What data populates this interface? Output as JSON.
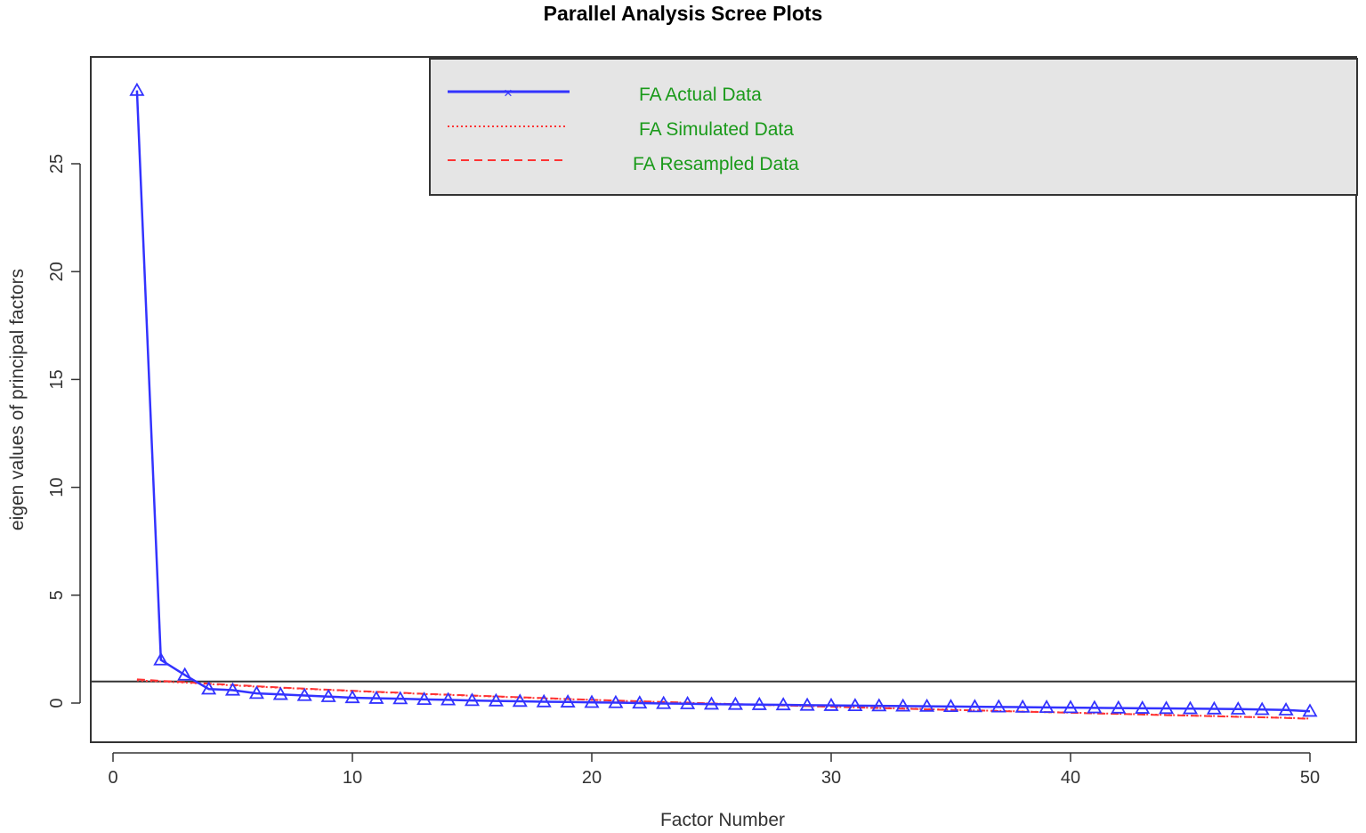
{
  "chart_data": {
    "type": "line",
    "title": "Parallel Analysis Scree Plots",
    "xlabel": "Factor Number",
    "ylabel": "eigen values of principal factors",
    "xlim": [
      0,
      50
    ],
    "ylim": [
      -1.8,
      29.3
    ],
    "x_ticks": [
      0,
      10,
      20,
      30,
      40,
      50
    ],
    "y_ticks": [
      0,
      5,
      10,
      15,
      20,
      25
    ],
    "reference_line": 1,
    "legend_position": "top-right",
    "colors": {
      "actual": "#3333ff",
      "simulated": "#ff3333",
      "resampled": "#ff3333",
      "legend_text": "#1a9a1a",
      "legend_bg": "#e5e5e5"
    },
    "x": [
      1,
      2,
      3,
      4,
      5,
      6,
      7,
      8,
      9,
      10,
      11,
      12,
      13,
      14,
      15,
      16,
      17,
      18,
      19,
      20,
      21,
      22,
      23,
      24,
      25,
      26,
      27,
      28,
      29,
      30,
      31,
      32,
      33,
      34,
      35,
      36,
      37,
      38,
      39,
      40,
      41,
      42,
      43,
      44,
      45,
      46,
      47,
      48,
      49,
      50
    ],
    "series": [
      {
        "name": "FA  Actual Data",
        "line_style": "solid",
        "marker": "triangle",
        "values": [
          28.4,
          2.0,
          1.3,
          0.65,
          0.6,
          0.45,
          0.4,
          0.35,
          0.3,
          0.25,
          0.22,
          0.2,
          0.17,
          0.15,
          0.12,
          0.1,
          0.08,
          0.06,
          0.05,
          0.03,
          0.02,
          0.0,
          -0.02,
          -0.03,
          -0.05,
          -0.06,
          -0.07,
          -0.08,
          -0.1,
          -0.11,
          -0.12,
          -0.13,
          -0.14,
          -0.15,
          -0.16,
          -0.17,
          -0.18,
          -0.19,
          -0.2,
          -0.21,
          -0.22,
          -0.23,
          -0.24,
          -0.25,
          -0.26,
          -0.27,
          -0.28,
          -0.3,
          -0.32,
          -0.38
        ]
      },
      {
        "name": "FA  Simulated Data",
        "line_style": "dotted",
        "values": [
          1.05,
          1.0,
          0.95,
          0.88,
          0.82,
          0.76,
          0.71,
          0.66,
          0.61,
          0.56,
          0.51,
          0.47,
          0.42,
          0.38,
          0.34,
          0.3,
          0.26,
          0.22,
          0.18,
          0.15,
          0.11,
          0.08,
          0.04,
          0.01,
          -0.02,
          -0.05,
          -0.08,
          -0.11,
          -0.14,
          -0.17,
          -0.2,
          -0.23,
          -0.25,
          -0.28,
          -0.31,
          -0.34,
          -0.36,
          -0.39,
          -0.42,
          -0.44,
          -0.47,
          -0.5,
          -0.52,
          -0.55,
          -0.58,
          -0.6,
          -0.63,
          -0.66,
          -0.68,
          -0.72
        ]
      },
      {
        "name": "FA  Resampled Data",
        "line_style": "dashed",
        "values": [
          1.1,
          1.03,
          0.97,
          0.9,
          0.84,
          0.78,
          0.72,
          0.67,
          0.62,
          0.57,
          0.52,
          0.48,
          0.43,
          0.39,
          0.35,
          0.31,
          0.27,
          0.23,
          0.19,
          0.15,
          0.12,
          0.08,
          0.05,
          0.02,
          -0.02,
          -0.05,
          -0.08,
          -0.11,
          -0.14,
          -0.17,
          -0.2,
          -0.23,
          -0.26,
          -0.29,
          -0.32,
          -0.34,
          -0.37,
          -0.4,
          -0.42,
          -0.45,
          -0.48,
          -0.5,
          -0.53,
          -0.56,
          -0.58,
          -0.61,
          -0.64,
          -0.66,
          -0.69,
          -0.73
        ]
      }
    ]
  }
}
